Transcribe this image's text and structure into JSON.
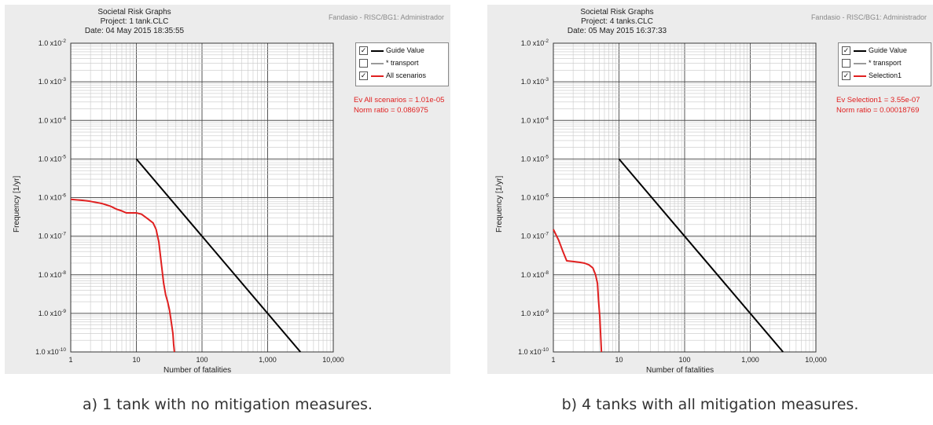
{
  "colors": {
    "guide": "#000000",
    "transport": "#9a9a9a",
    "scenario": "#e02020",
    "panel_bg": "#ececec",
    "plot_bg": "#ffffff"
  },
  "chart_data": [
    {
      "type": "line",
      "title_lines": [
        "Societal Risk Graphs",
        "Project: 1 tank.CLC",
        "Date: 04 May 2015  18:35:55"
      ],
      "user_label": "Fandasio - RISC/BG1: Administrador",
      "xlabel": "Number of fatalities",
      "ylabel": "Frequency [1/yr]",
      "x_scale": "log",
      "y_scale": "log",
      "xlim": [
        1,
        10000
      ],
      "ylim": [
        1e-10,
        0.01
      ],
      "grid": true,
      "x_ticks": [
        "1",
        "10",
        "100",
        "1,000",
        "10,000"
      ],
      "y_ticks": [
        "1.0 x10-10",
        "1.0 x10-9",
        "1.0 x10-8",
        "1.0 x10-7",
        "1.0 x10-6",
        "1.0 x10-5",
        "1.0 x10-4",
        "1.0 x10-3",
        "1.0 x10-2"
      ],
      "legend": {
        "placement": "right",
        "entries": [
          {
            "label": "Guide Value",
            "checked": true,
            "color": "#000000"
          },
          {
            "label": "* transport",
            "checked": false,
            "color": "#9a9a9a"
          },
          {
            "label": "All scenarios",
            "checked": true,
            "color": "#e02020"
          }
        ]
      },
      "annotation_lines": [
        "Ev All scenarios =  1.01e-05",
        "Norm ratio =  0.086975"
      ],
      "series": [
        {
          "name": "Guide Value",
          "color": "#000000",
          "x": [
            10,
            3162
          ],
          "y": [
            1e-05,
            1e-10
          ]
        },
        {
          "name": "All scenarios",
          "color": "#e02020",
          "x": [
            1,
            1.5,
            2,
            3,
            4,
            5,
            6,
            7,
            8,
            10,
            12,
            15,
            18,
            20,
            22,
            24,
            26,
            28,
            30,
            32,
            34,
            36,
            37,
            38
          ],
          "y": [
            9e-07,
            8.5e-07,
            8e-07,
            7e-07,
            6e-07,
            5e-07,
            4.5e-07,
            4e-07,
            4e-07,
            4e-07,
            3.7e-07,
            2.8e-07,
            2.2e-07,
            1.5e-07,
            7e-08,
            2e-08,
            6e-09,
            3e-09,
            2e-09,
            1.2e-09,
            6e-10,
            3e-10,
            1.6e-10,
            1e-10
          ]
        }
      ],
      "caption": "a) 1 tank with no mitigation measures."
    },
    {
      "type": "line",
      "title_lines": [
        "Societal Risk Graphs",
        "Project: 4 tanks.CLC",
        "Date: 05 May 2015  16:37:33"
      ],
      "user_label": "Fandasio - RISC/BG1: Administrador",
      "xlabel": "Number of fatalities",
      "ylabel": "Frequency [1/yr]",
      "x_scale": "log",
      "y_scale": "log",
      "xlim": [
        1,
        10000
      ],
      "ylim": [
        1e-10,
        0.01
      ],
      "grid": true,
      "x_ticks": [
        "1",
        "10",
        "100",
        "1,000",
        "10,000"
      ],
      "y_ticks": [
        "1.0 x10-10",
        "1.0 x10-9",
        "1.0 x10-8",
        "1.0 x10-7",
        "1.0 x10-6",
        "1.0 x10-5",
        "1.0 x10-4",
        "1.0 x10-3",
        "1.0 x10-2"
      ],
      "legend": {
        "placement": "right",
        "entries": [
          {
            "label": "Guide Value",
            "checked": true,
            "color": "#000000"
          },
          {
            "label": "* transport",
            "checked": false,
            "color": "#9a9a9a"
          },
          {
            "label": "Selection1",
            "checked": true,
            "color": "#e02020"
          }
        ]
      },
      "annotation_lines": [
        "Ev Selection1 =  3.55e-07",
        "Norm ratio =  0.00018769"
      ],
      "series": [
        {
          "name": "Guide Value",
          "color": "#000000",
          "x": [
            10,
            3162
          ],
          "y": [
            1e-05,
            1e-10
          ]
        },
        {
          "name": "Selection1",
          "color": "#e02020",
          "x": [
            1,
            1.2,
            1.4,
            1.6,
            2,
            2.5,
            3,
            3.5,
            4,
            4.4,
            4.7,
            4.9,
            5.1,
            5.2,
            5.3,
            5.4
          ],
          "y": [
            1.5e-07,
            8e-08,
            4e-08,
            2.3e-08,
            2.2e-08,
            2.1e-08,
            2e-08,
            1.8e-08,
            1.5e-08,
            1e-08,
            6e-09,
            2e-09,
            8e-10,
            4e-10,
            2e-10,
            1e-10
          ]
        }
      ],
      "caption": "b) 4 tanks with all mitigation measures."
    }
  ]
}
